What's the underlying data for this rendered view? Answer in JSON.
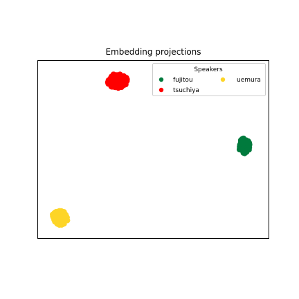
{
  "chart_data": {
    "type": "scatter",
    "title": "Embedding projections",
    "xlabel": "",
    "ylabel": "",
    "xlim": [
      0,
      100
    ],
    "ylim": [
      0,
      100
    ],
    "grid": false,
    "show_ticks": false,
    "legend": {
      "title": "Speakers",
      "placement": "top-right",
      "columns": 2
    },
    "series": [
      {
        "name": "fujitou",
        "color": "#007a3d",
        "center": [
          89.5,
          52.0
        ],
        "spread": [
          2.6,
          4.3
        ],
        "count": 70,
        "seed": 11
      },
      {
        "name": "tsuchiya",
        "color": "#ff0000",
        "center": [
          34.5,
          88.5
        ],
        "spread": [
          4.4,
          4.0
        ],
        "count": 90,
        "seed": 23
      },
      {
        "name": "uemura",
        "color": "#fdd527",
        "center": [
          9.5,
          11.5
        ],
        "spread": [
          3.5,
          4.0
        ],
        "count": 70,
        "seed": 37
      }
    ]
  }
}
